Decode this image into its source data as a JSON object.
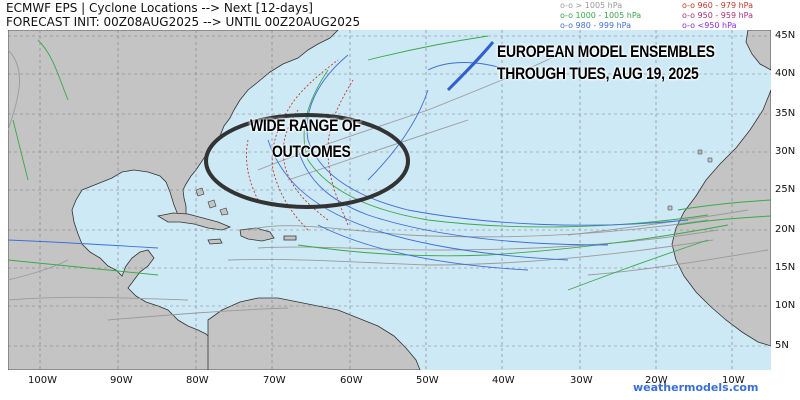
{
  "header": {
    "line1": "ECMWF EPS | Cyclone Locations --> Next [12-days]",
    "line2": "FORECAST INIT: 00Z08AUG2025 --> UNTIL 00Z20AUG2025"
  },
  "legend": [
    {
      "label": "o-o > 1005 hPa",
      "color": "#9a9a9a"
    },
    {
      "label": "o-o 1000 - 1005 hPa",
      "color": "#3aa84a"
    },
    {
      "label": "o-o 980 - 999 hPa",
      "color": "#3f6fd8"
    },
    {
      "label": "o-o 960 - 979 hPa",
      "color": "#c0392b"
    },
    {
      "label": "o-o 950 - 959 hPa",
      "color": "#b0307a"
    },
    {
      "label": "o-o <950 hPa",
      "color": "#8a2be2"
    }
  ],
  "overlay": {
    "title_line1": "EUROPEAN MODEL ENSEMBLES",
    "title_line2": "THROUGH TUES, AUG 19, 2025",
    "annotation_line1": "WIDE RANGE OF",
    "annotation_line2": "OUTCOMES"
  },
  "axes": {
    "lon_labels": [
      "100W",
      "90W",
      "80W",
      "70W",
      "60W",
      "50W",
      "40W",
      "30W",
      "20W",
      "10W"
    ],
    "lat_labels": [
      "45N",
      "40N",
      "35N",
      "30N",
      "25N",
      "20N",
      "15N",
      "10N",
      "5N"
    ]
  },
  "brand": "weathermodels.com",
  "colors": {
    "ocean": "#cde9f5",
    "land": "#c4c4c4",
    "grid": "#7e7e7e"
  }
}
